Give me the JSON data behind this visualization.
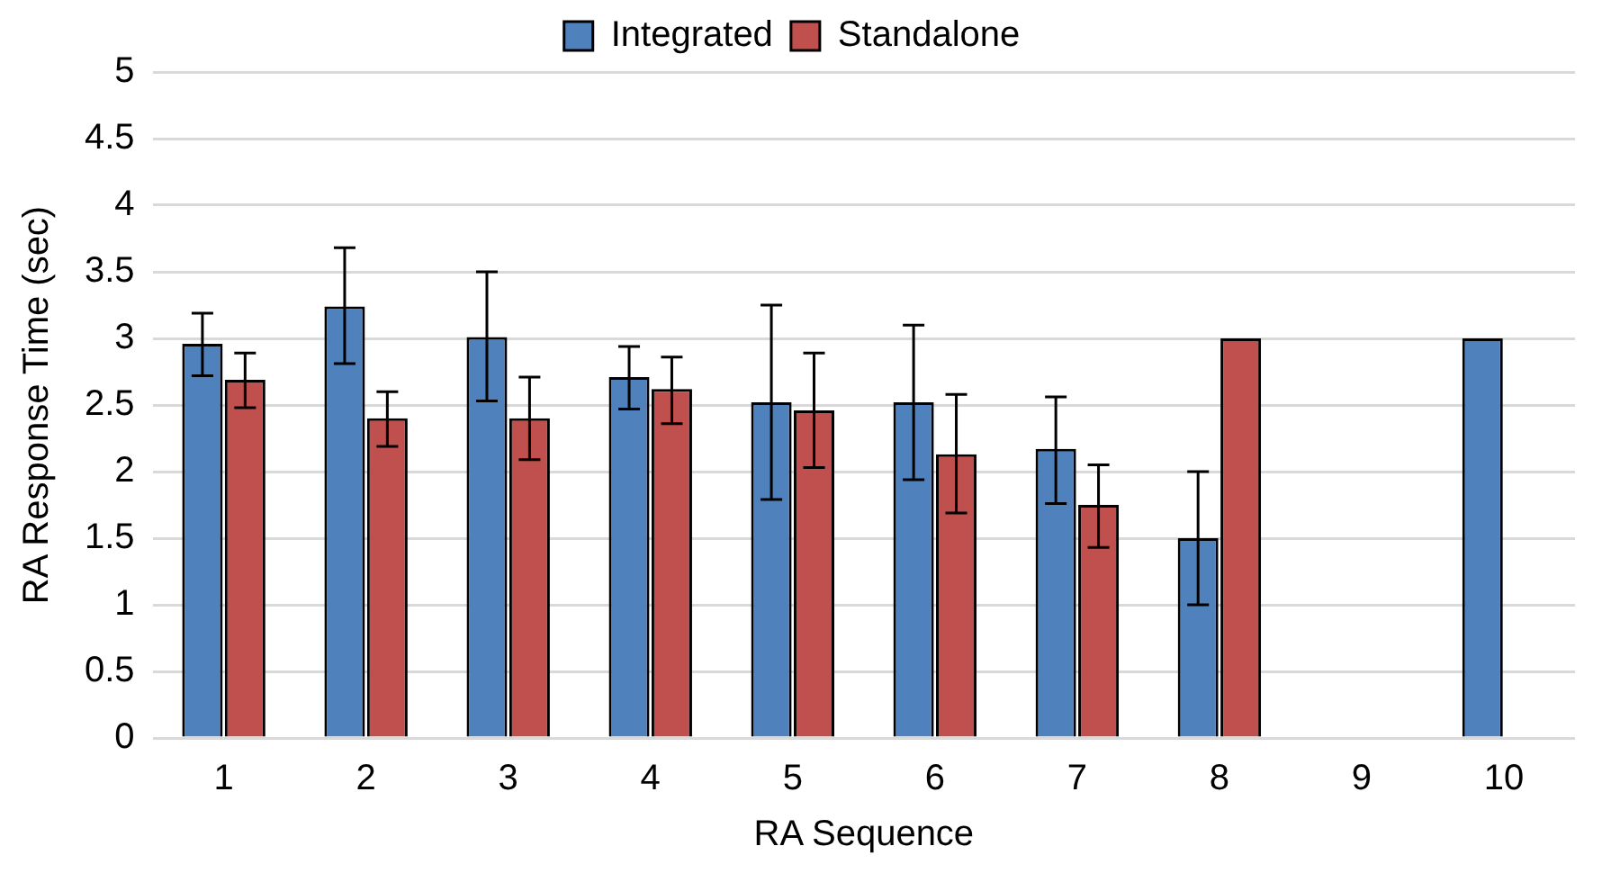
{
  "chart_data": {
    "type": "bar",
    "xlabel": "RA Sequence",
    "ylabel": "RA Response Time (sec)",
    "categories": [
      "1",
      "2",
      "3",
      "4",
      "5",
      "6",
      "7",
      "8",
      "9",
      "10"
    ],
    "series": [
      {
        "name": "Integrated",
        "color": "#4f81bd",
        "values": [
          2.96,
          3.24,
          3.01,
          2.71,
          2.52,
          2.52,
          2.17,
          1.5,
          null,
          3.0
        ],
        "errors": [
          [
            2.72,
            3.19
          ],
          [
            2.81,
            3.68
          ],
          [
            2.53,
            3.5
          ],
          [
            2.47,
            2.94
          ],
          [
            1.79,
            3.25
          ],
          [
            1.94,
            3.1
          ],
          [
            1.76,
            2.56
          ],
          [
            1.0,
            2.0
          ],
          null,
          null
        ]
      },
      {
        "name": "Standalone",
        "color": "#c0504d",
        "values": [
          2.69,
          2.4,
          2.4,
          2.62,
          2.46,
          2.13,
          1.75,
          3.0,
          null,
          null
        ],
        "errors": [
          [
            2.48,
            2.89
          ],
          [
            2.19,
            2.6
          ],
          [
            2.09,
            2.71
          ],
          [
            2.36,
            2.86
          ],
          [
            2.03,
            2.89
          ],
          [
            1.69,
            2.58
          ],
          [
            1.43,
            2.05
          ],
          null,
          null,
          null
        ]
      }
    ],
    "ylim": [
      0,
      5
    ],
    "yticks": [
      0,
      0.5,
      1,
      1.5,
      2,
      2.5,
      3,
      3.5,
      4,
      4.5,
      5
    ],
    "grid": "y",
    "legend": "top"
  }
}
